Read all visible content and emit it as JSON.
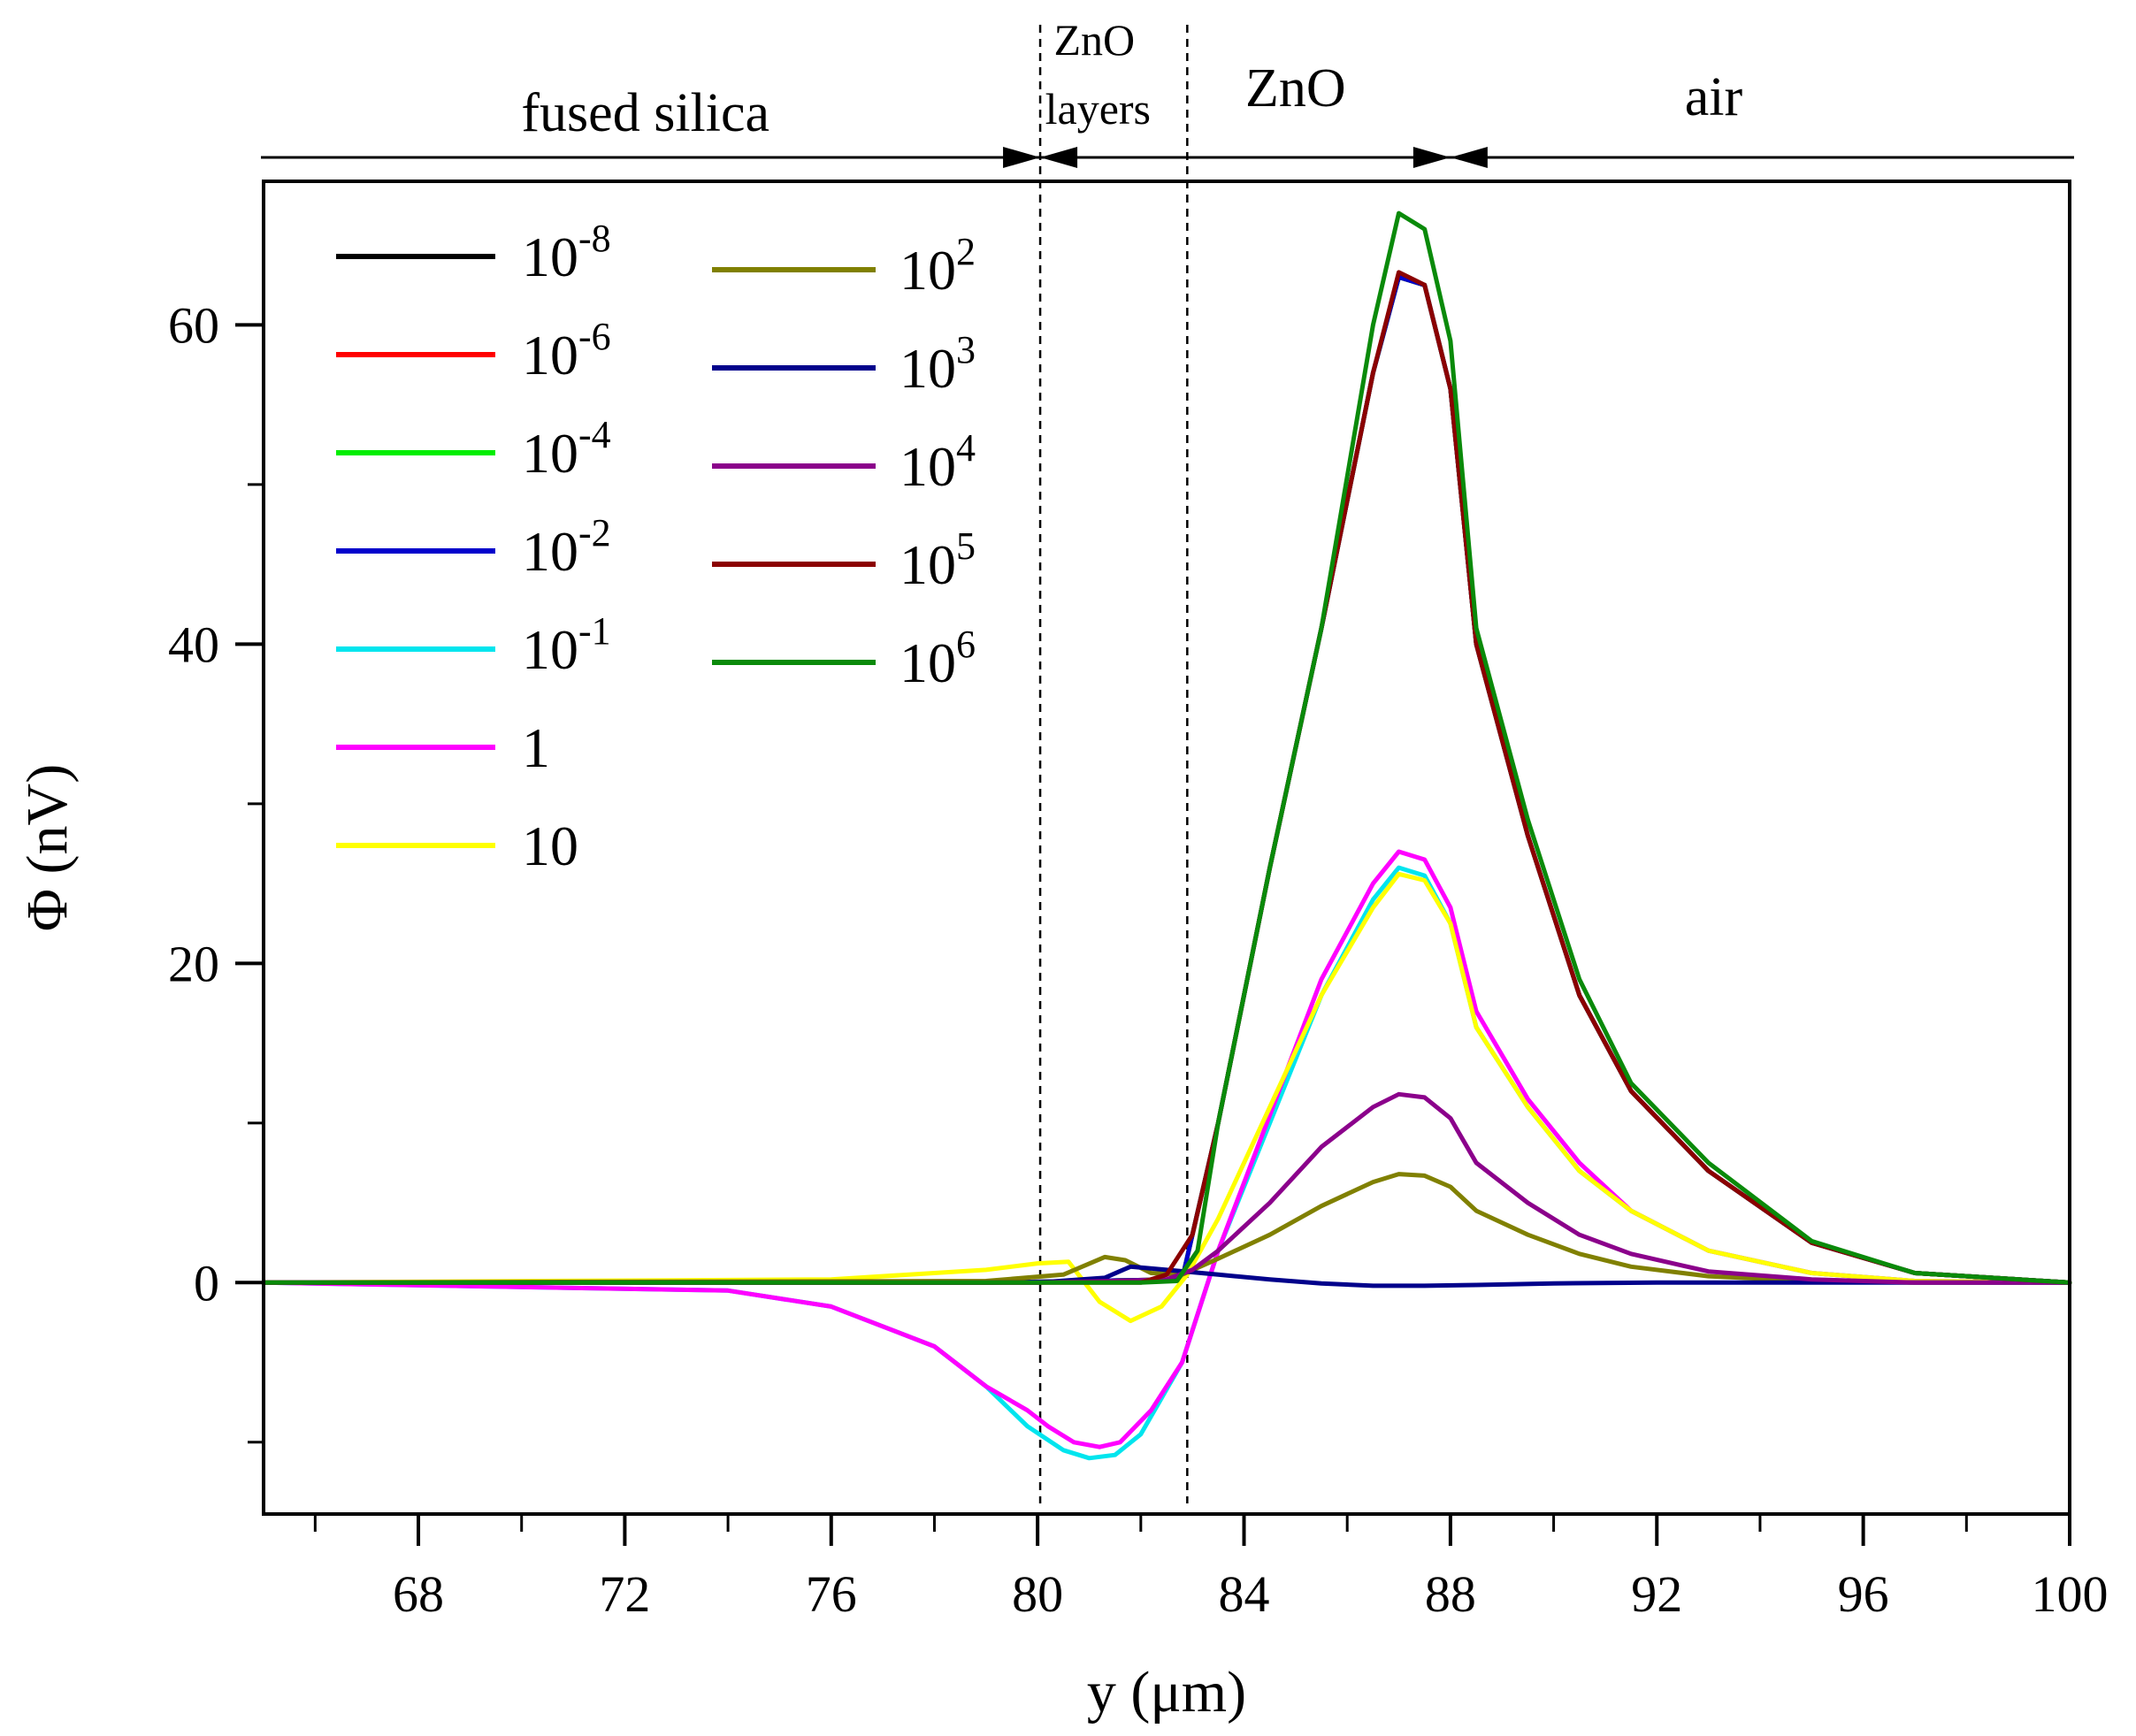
{
  "chart_data": {
    "type": "line",
    "title": "",
    "xlabel": "y (μm)",
    "ylabel": "Φ (nV)",
    "xlim": [
      65,
      100
    ],
    "ylim": [
      -14.5,
      69
    ],
    "x_ticks": [
      68,
      72,
      76,
      80,
      84,
      88,
      92,
      96,
      100
    ],
    "x_tick_labels": [
      "68",
      "72",
      "76",
      "80",
      "84",
      "88",
      "92",
      "96",
      "100"
    ],
    "y_ticks": [
      0,
      20,
      40,
      60
    ],
    "y_tick_labels": [
      "0",
      "20",
      "40",
      "60"
    ],
    "grid": false,
    "legend_position": "top-left",
    "interfaces": [
      80.05,
      82.9
    ],
    "regions": [
      {
        "label": "fused silica",
        "x_center": 72.4
      },
      {
        "label": "ZnO",
        "label2": "layers",
        "x_center": 81.1
      },
      {
        "label": "ZnO",
        "x_center": 85.0
      },
      {
        "label": "air",
        "x_center": 93.1
      }
    ],
    "region_arrow_junctions": [
      80.05,
      88.0
    ],
    "series": [
      {
        "name": "10",
        "sup": "-8",
        "color": "#000000",
        "x": [
          65,
          79,
          82.8,
          83.5,
          84.5,
          85.5,
          86.5,
          87.0,
          87.5,
          88.0,
          88.5,
          89.5,
          90.5,
          91.5,
          93,
          95,
          97,
          100
        ],
        "y": [
          0,
          0,
          0.2,
          10,
          26,
          41,
          57,
          63,
          62.5,
          56,
          40,
          28,
          18,
          12,
          7,
          2.5,
          0.6,
          0
        ]
      },
      {
        "name": "10",
        "sup": "-6",
        "color": "#ff0000",
        "x": [
          65,
          79,
          82.8,
          83.5,
          84.5,
          85.5,
          86.5,
          87.0,
          87.5,
          88.0,
          88.5,
          89.5,
          90.5,
          91.5,
          93,
          95,
          97,
          100
        ],
        "y": [
          0,
          0,
          0.2,
          10,
          26,
          41,
          57,
          63,
          62.5,
          56,
          40,
          28,
          18,
          12,
          7,
          2.5,
          0.6,
          0
        ]
      },
      {
        "name": "10",
        "sup": "-4",
        "color": "#00ee00",
        "x": [
          65,
          79,
          82.8,
          83.5,
          84.5,
          85.5,
          86.5,
          87.0,
          87.5,
          88.0,
          88.5,
          89.5,
          90.5,
          91.5,
          93,
          95,
          97,
          100
        ],
        "y": [
          0,
          0,
          0.2,
          10,
          26,
          41,
          57,
          63,
          62.5,
          56,
          40,
          28,
          18,
          12,
          7,
          2.5,
          0.6,
          0
        ]
      },
      {
        "name": "10",
        "sup": "-2",
        "color": "#0000cc",
        "x": [
          65,
          79,
          82.8,
          83.5,
          84.5,
          85.5,
          86.5,
          87.0,
          87.5,
          88.0,
          88.5,
          89.5,
          90.5,
          91.5,
          93,
          95,
          97,
          100
        ],
        "y": [
          0,
          0,
          0.2,
          10,
          26,
          41,
          57,
          63,
          62.5,
          56,
          40,
          28,
          18,
          12,
          7,
          2.5,
          0.6,
          0
        ]
      },
      {
        "name": "10",
        "sup": "-1",
        "color": "#00e5ee",
        "x": [
          65,
          74,
          76,
          78,
          79,
          79.8,
          80.5,
          81.0,
          81.5,
          82.0,
          82.8,
          83.5,
          84.5,
          85.5,
          86.5,
          87.0,
          87.5,
          88.0,
          88.5,
          89.5,
          90.5,
          91.5,
          93,
          95,
          97,
          100
        ],
        "y": [
          0,
          -0.5,
          -1.5,
          -4,
          -6.5,
          -9,
          -10.5,
          -11,
          -10.8,
          -9.5,
          -5,
          2,
          10,
          18,
          24,
          26,
          25.5,
          22.5,
          16,
          11,
          7,
          4.5,
          2,
          0.6,
          0.1,
          0
        ]
      },
      {
        "name": "1",
        "sup": "",
        "color": "#ff00ff",
        "x": [
          65,
          74,
          76,
          78,
          79,
          79.8,
          80.2,
          80.7,
          81.2,
          81.6,
          82.2,
          82.8,
          83.5,
          84.5,
          85.5,
          86.5,
          87.0,
          87.5,
          88.0,
          88.5,
          89.5,
          90.5,
          91.5,
          93,
          95,
          97,
          100
        ],
        "y": [
          0,
          -0.5,
          -1.5,
          -4,
          -6.5,
          -8,
          -9,
          -10,
          -10.3,
          -10,
          -8,
          -5,
          2,
          10.5,
          19,
          25,
          27,
          26.5,
          23.5,
          17,
          11.5,
          7.5,
          4.5,
          2,
          0.6,
          0.1,
          0
        ]
      },
      {
        "name": "10",
        "sup": "",
        "color": "#ffff00",
        "x": [
          65,
          76,
          79,
          80,
          80.6,
          81.2,
          81.8,
          82.4,
          82.9,
          83.5,
          84.5,
          85.5,
          86.5,
          87.0,
          87.5,
          88.0,
          88.5,
          89.5,
          90.5,
          91.5,
          93,
          95,
          97,
          100
        ],
        "y": [
          0,
          0.2,
          0.8,
          1.2,
          1.3,
          -1.2,
          -2.4,
          -1.5,
          0.5,
          4,
          11,
          18,
          23.5,
          25.6,
          25.2,
          22.5,
          16,
          11,
          7,
          4.5,
          2,
          0.6,
          0.1,
          0
        ]
      },
      {
        "name": "10",
        "sup": "2",
        "color": "#808000",
        "x": [
          65,
          79,
          80.5,
          81.3,
          81.7,
          82.2,
          82.8,
          83.5,
          84.5,
          85.5,
          86.5,
          87.0,
          87.5,
          88.0,
          88.5,
          89.5,
          90.5,
          91.5,
          93,
          95,
          97,
          100
        ],
        "y": [
          0,
          0.1,
          0.5,
          1.6,
          1.4,
          0.6,
          0.5,
          1.5,
          3,
          4.8,
          6.3,
          6.8,
          6.7,
          6.0,
          4.5,
          3,
          1.8,
          1,
          0.4,
          0.1,
          0,
          0
        ]
      },
      {
        "name": "10",
        "sup": "3",
        "color": "#00008b",
        "x": [
          65,
          80,
          81.3,
          81.8,
          82.5,
          83.5,
          84.5,
          85.5,
          86.5,
          87.5,
          88.5,
          90,
          92,
          95,
          100
        ],
        "y": [
          0,
          0,
          0.3,
          1.0,
          0.8,
          0.5,
          0.2,
          -0.05,
          -0.2,
          -0.2,
          -0.15,
          -0.05,
          0,
          0,
          0
        ]
      },
      {
        "name": "10",
        "sup": "4",
        "color": "#8b008b",
        "x": [
          65,
          80,
          81.5,
          82.5,
          83.0,
          83.5,
          84.5,
          85.5,
          86.5,
          87.0,
          87.5,
          88.0,
          88.5,
          89.5,
          90.5,
          91.5,
          93,
          95,
          97,
          100
        ],
        "y": [
          0,
          0,
          0.1,
          0.2,
          0.8,
          2.0,
          5,
          8.5,
          11,
          11.8,
          11.6,
          10.3,
          7.5,
          5,
          3,
          1.8,
          0.7,
          0.2,
          0,
          0
        ]
      },
      {
        "name": "10",
        "sup": "5",
        "color": "#8b0000",
        "x": [
          65,
          82.0,
          82.5,
          83.0,
          83.5,
          84.5,
          85.5,
          86.5,
          87.0,
          87.5,
          88.0,
          88.5,
          89.5,
          90.5,
          91.5,
          93,
          95,
          97,
          100
        ],
        "y": [
          0,
          0,
          0.5,
          3,
          10,
          26,
          41,
          57,
          63.3,
          62.5,
          56,
          40,
          28,
          18,
          12,
          7,
          2.5,
          0.6,
          0
        ]
      },
      {
        "name": "10",
        "sup": "6",
        "color": "#0a8a0a",
        "x": [
          65,
          82.0,
          82.7,
          83.1,
          83.5,
          84.5,
          85.5,
          86.5,
          87.0,
          87.5,
          88.0,
          88.5,
          89.5,
          90.5,
          91.5,
          93,
          95,
          97,
          100
        ],
        "y": [
          0,
          0,
          0.1,
          2,
          10,
          26,
          41,
          60,
          67,
          66,
          59,
          41,
          29,
          19,
          12.5,
          7.5,
          2.6,
          0.6,
          0
        ]
      }
    ]
  }
}
